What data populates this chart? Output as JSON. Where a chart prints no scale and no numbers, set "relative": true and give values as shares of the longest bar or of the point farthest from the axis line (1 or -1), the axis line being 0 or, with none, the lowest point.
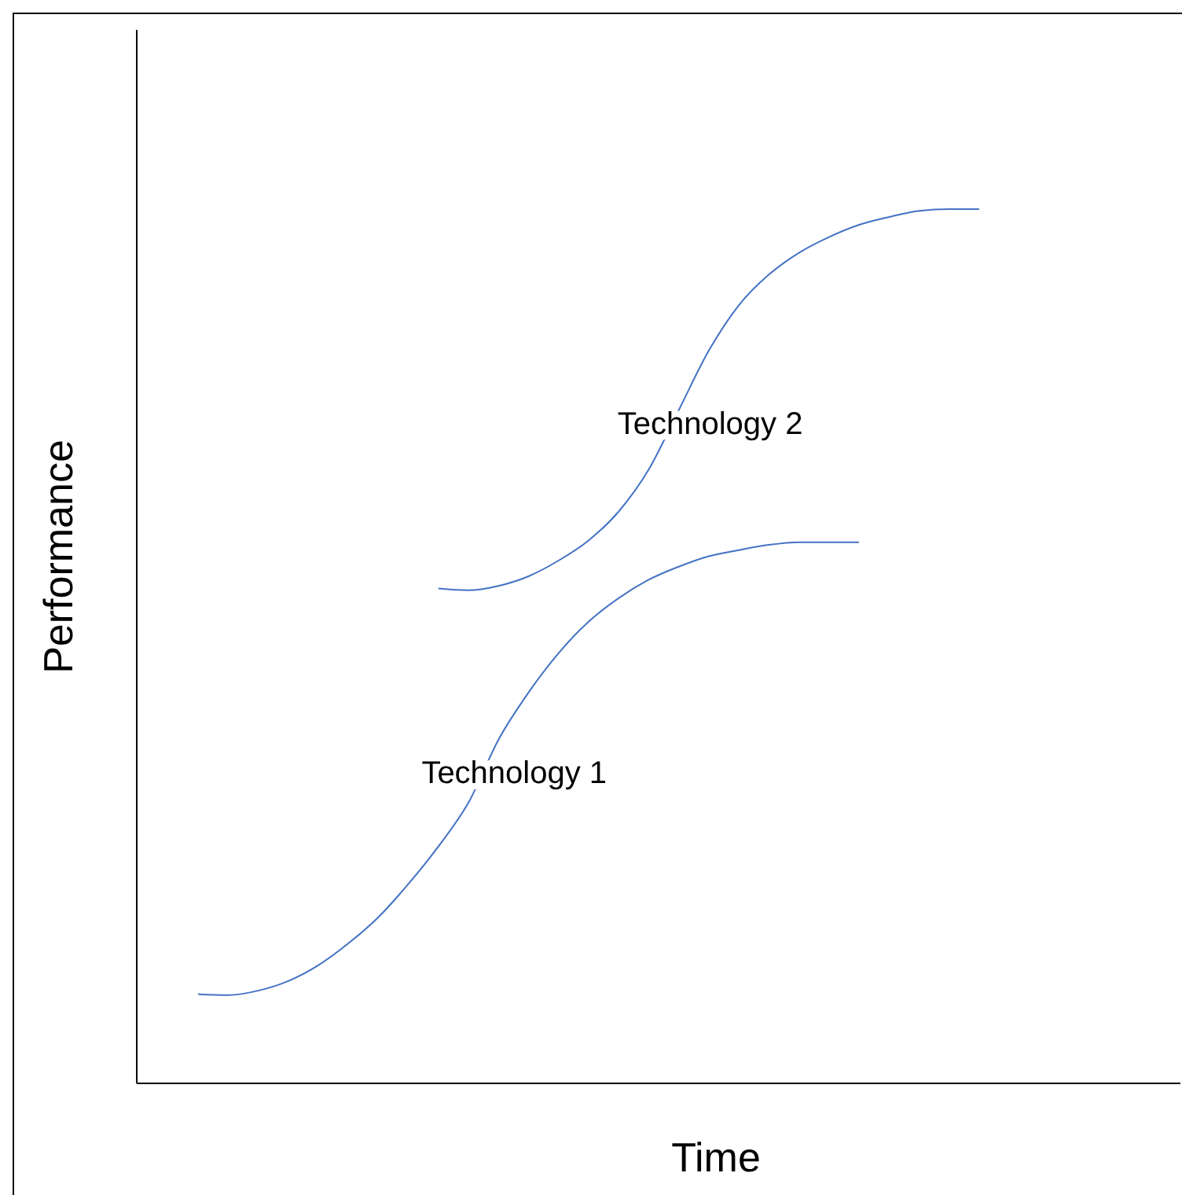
{
  "chart_data": {
    "type": "line",
    "relative": true,
    "xlabel": "Time",
    "ylabel": "Performance",
    "categories": [
      null,
      null,
      null,
      null,
      null,
      null,
      null,
      null,
      null,
      null,
      null,
      null,
      null,
      null,
      null,
      null,
      null,
      null,
      null,
      null,
      null,
      null,
      null,
      null,
      null,
      null,
      null
    ],
    "series": [
      {
        "name": "Technology 1",
        "color": "#4472c4",
        "values": [
          0.102,
          0.101,
          0.106,
          0.117,
          0.135,
          0.16,
          0.19,
          0.228,
          0.271,
          0.321,
          0.393,
          0.447,
          0.492,
          0.528,
          0.555,
          0.576,
          0.591,
          0.603,
          0.61,
          0.616,
          0.619,
          0.619,
          0.619,
          null,
          null,
          null,
          null
        ]
      },
      {
        "name": "Technology 2",
        "color": "#4472c4",
        "values": [
          null,
          null,
          null,
          null,
          null,
          null,
          null,
          null,
          0.566,
          0.564,
          0.569,
          0.58,
          0.598,
          0.621,
          0.654,
          0.702,
          0.77,
          0.838,
          0.89,
          0.925,
          0.95,
          0.968,
          0.982,
          0.991,
          0.998,
          1,
          1
        ]
      }
    ]
  }
}
